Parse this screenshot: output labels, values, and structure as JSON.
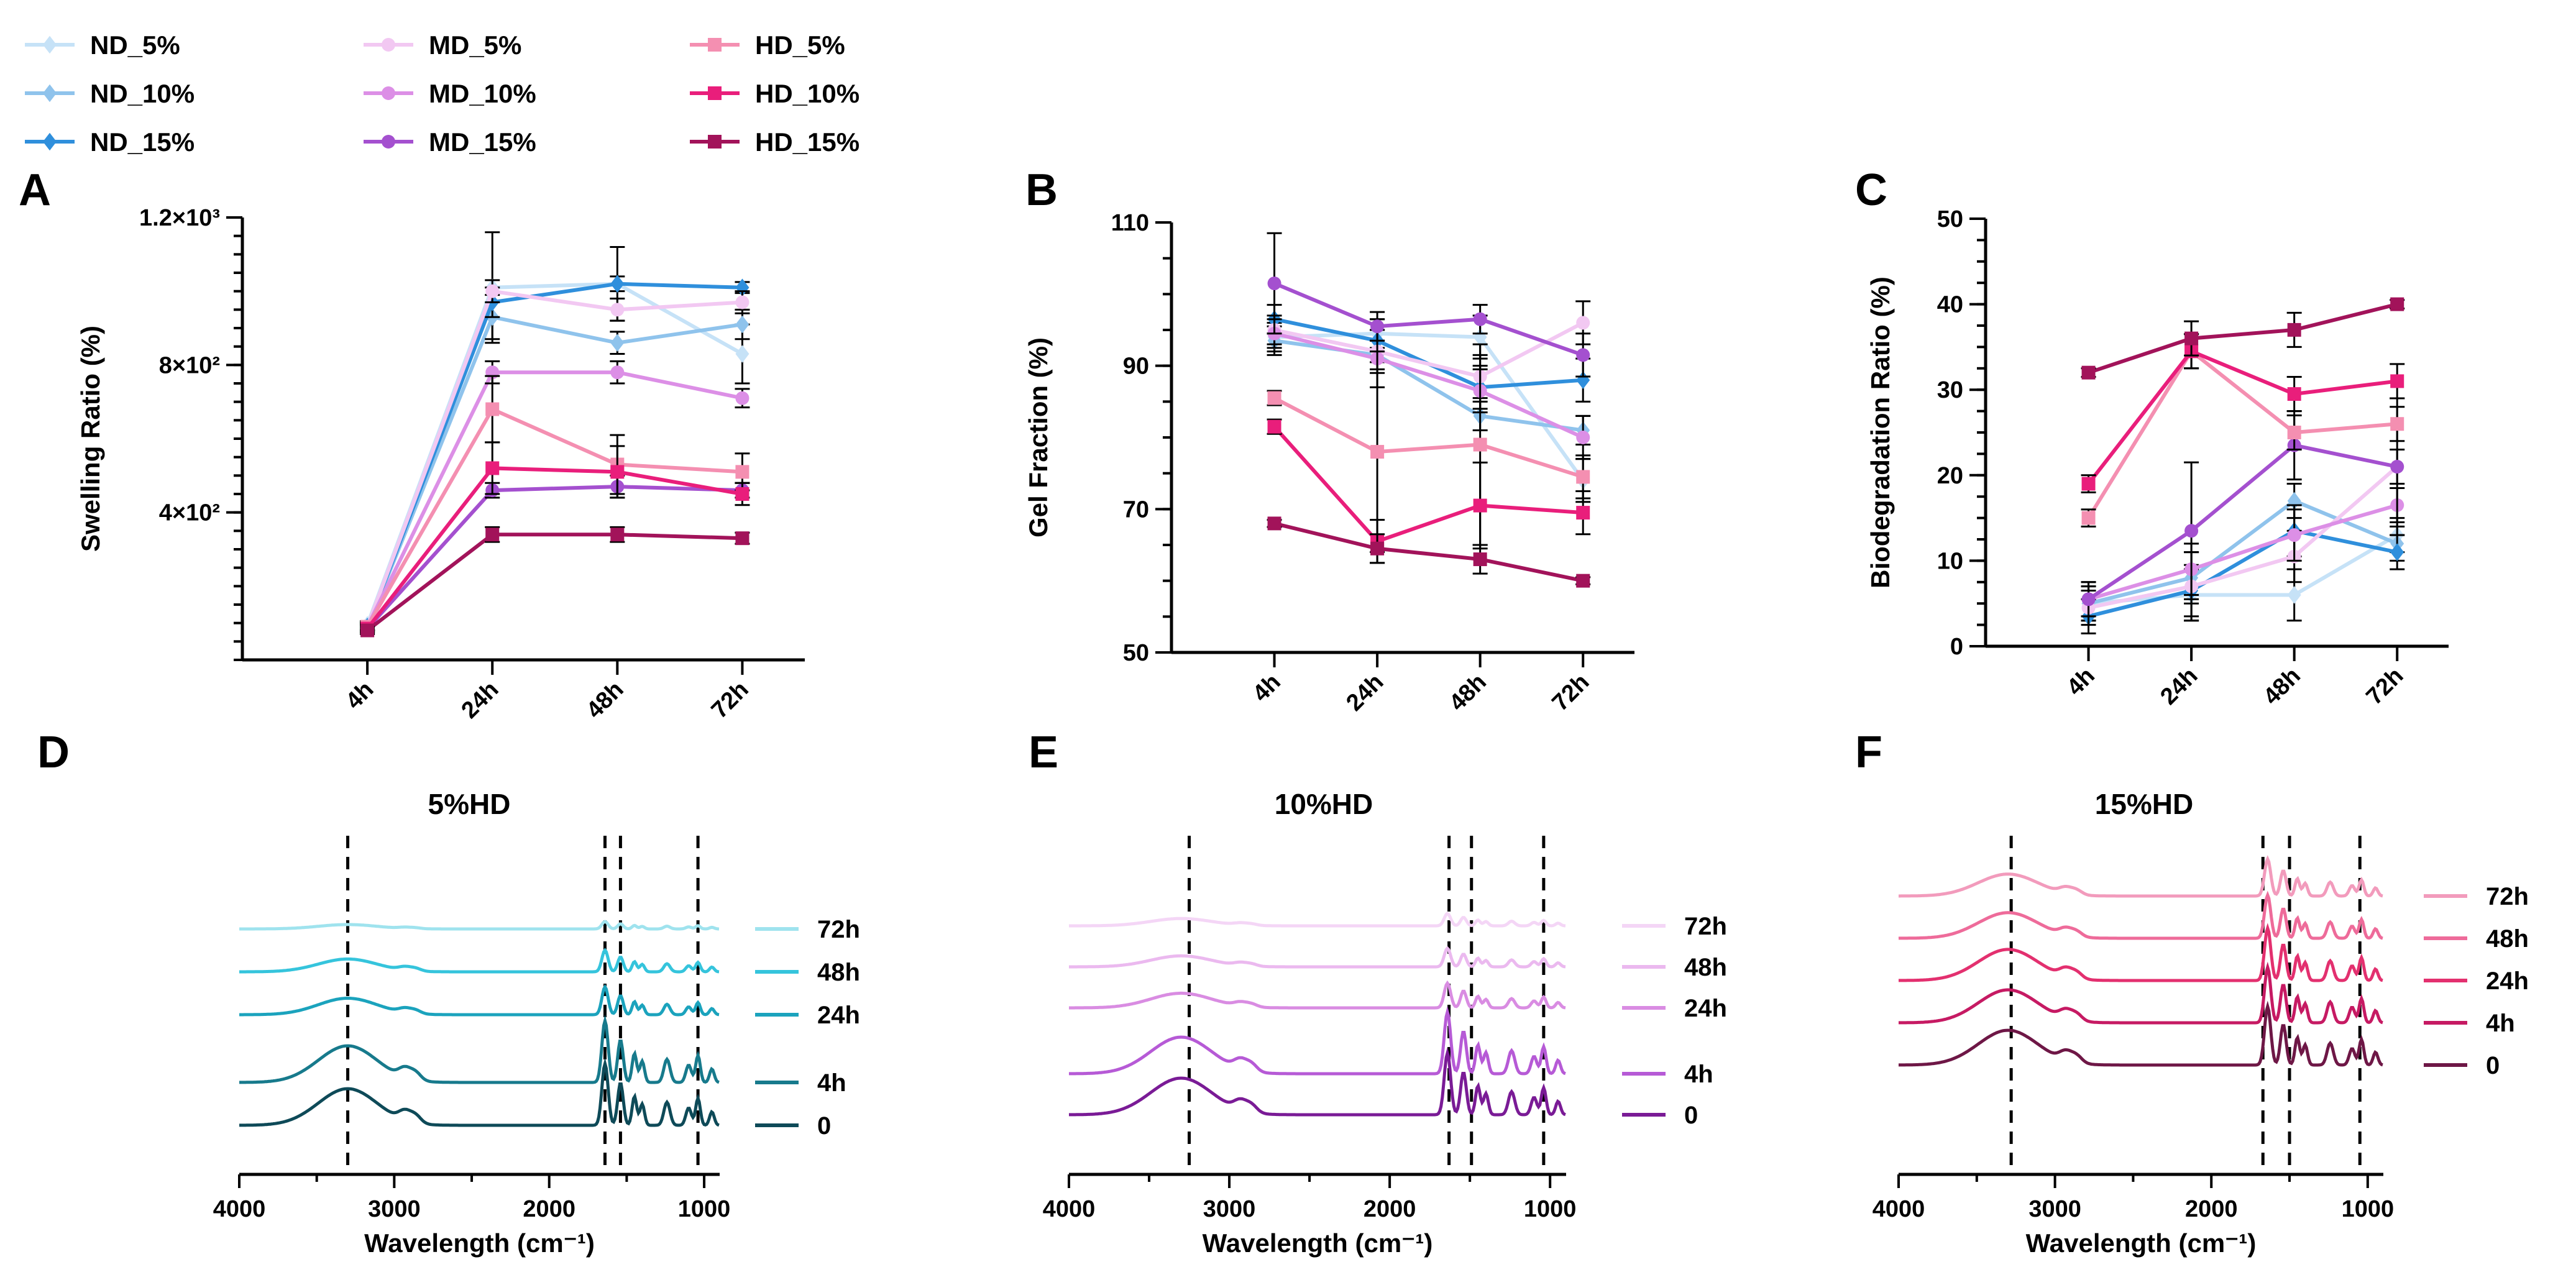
{
  "legend": {
    "items": [
      {
        "label": "ND_5%",
        "color": "#c6e2f7",
        "marker": "diamond"
      },
      {
        "label": "ND_10%",
        "color": "#8fc3ec",
        "marker": "diamond"
      },
      {
        "label": "ND_15%",
        "color": "#2f8fdc",
        "marker": "diamond"
      },
      {
        "label": "MD_5%",
        "color": "#f2c8f2",
        "marker": "circle"
      },
      {
        "label": "MD_10%",
        "color": "#dc8fe6",
        "marker": "circle"
      },
      {
        "label": "MD_15%",
        "color": "#a450cf",
        "marker": "circle"
      },
      {
        "label": "HD_5%",
        "color": "#f48fb1",
        "marker": "square"
      },
      {
        "label": "HD_10%",
        "color": "#e91e7b",
        "marker": "square"
      },
      {
        "label": "HD_15%",
        "color": "#a2135a",
        "marker": "square"
      }
    ]
  },
  "chart_data": [
    {
      "panel": "A",
      "type": "line",
      "ylabel": "Swelling Ratio (%)",
      "xlabel": "",
      "categories": [
        "4h",
        "24h",
        "48h",
        "72h"
      ],
      "ylim": [
        0,
        1200
      ],
      "yticks": [
        {
          "v": 400,
          "label": "4×10²"
        },
        {
          "v": 800,
          "label": "8×10²"
        },
        {
          "v": 1200,
          "label": "1.2×10³"
        }
      ],
      "series": [
        {
          "name": "ND_5%",
          "values": [
            95,
            1010,
            1020,
            830
          ],
          "err": [
            10,
            150,
            100,
            80
          ]
        },
        {
          "name": "ND_10%",
          "values": [
            90,
            930,
            860,
            910
          ],
          "err": [
            10,
            60,
            30,
            40
          ]
        },
        {
          "name": "ND_15%",
          "values": [
            90,
            970,
            1020,
            1010
          ],
          "err": [
            10,
            40,
            20,
            15
          ]
        },
        {
          "name": "MD_5%",
          "values": [
            90,
            1000,
            950,
            970
          ],
          "err": [
            10,
            30,
            30,
            30
          ]
        },
        {
          "name": "MD_10%",
          "values": [
            90,
            780,
            780,
            710
          ],
          "err": [
            10,
            30,
            30,
            25
          ]
        },
        {
          "name": "MD_15%",
          "values": [
            85,
            460,
            470,
            460
          ],
          "err": [
            10,
            20,
            30,
            20
          ]
        },
        {
          "name": "HD_5%",
          "values": [
            90,
            680,
            530,
            510
          ],
          "err": [
            10,
            90,
            80,
            50
          ]
        },
        {
          "name": "HD_10%",
          "values": [
            85,
            520,
            510,
            450
          ],
          "err": [
            10,
            70,
            70,
            30
          ]
        },
        {
          "name": "HD_15%",
          "values": [
            80,
            340,
            340,
            330
          ],
          "err": [
            10,
            20,
            20,
            15
          ]
        }
      ]
    },
    {
      "panel": "B",
      "type": "line",
      "ylabel": "Gel Fraction (%)",
      "xlabel": "",
      "categories": [
        "4h",
        "24h",
        "48h",
        "72h"
      ],
      "ylim": [
        50,
        110
      ],
      "yticks": [
        {
          "v": 50,
          "label": "50"
        },
        {
          "v": 70,
          "label": "70"
        },
        {
          "v": 90,
          "label": "90"
        },
        {
          "v": 110,
          "label": "110"
        }
      ],
      "series": [
        {
          "name": "ND_5%",
          "values": [
            94,
            94.5,
            94,
            74
          ],
          "err": [
            2,
            2,
            3,
            3
          ]
        },
        {
          "name": "ND_10%",
          "values": [
            93.5,
            91.5,
            83,
            81
          ],
          "err": [
            2,
            2,
            2,
            2
          ]
        },
        {
          "name": "ND_15%",
          "values": [
            96.5,
            93.5,
            87,
            88
          ],
          "err": [
            2,
            3,
            3,
            3
          ]
        },
        {
          "name": "MD_5%",
          "values": [
            95,
            92,
            88.5,
            96
          ],
          "err": [
            2,
            3,
            3,
            3
          ]
        },
        {
          "name": "MD_10%",
          "values": [
            94.5,
            91,
            86.5,
            80
          ],
          "err": [
            2,
            4,
            3,
            3
          ]
        },
        {
          "name": "MD_15%",
          "values": [
            101.5,
            95.5,
            96.5,
            91.5
          ],
          "err": [
            7,
            2,
            2,
            3
          ]
        },
        {
          "name": "HD_5%",
          "values": [
            85.5,
            78,
            79,
            74.5
          ],
          "err": [
            1,
            14,
            14,
            3
          ]
        },
        {
          "name": "HD_10%",
          "values": [
            81.5,
            65.5,
            70.5,
            69.5
          ],
          "err": [
            1,
            3,
            6,
            3
          ]
        },
        {
          "name": "HD_15%",
          "values": [
            68,
            64.5,
            63,
            60
          ],
          "err": [
            0.5,
            2,
            2,
            0.5
          ]
        }
      ]
    },
    {
      "panel": "C",
      "type": "line",
      "ylabel": "Biodegradation Ratio (%)",
      "xlabel": "",
      "categories": [
        "4h",
        "24h",
        "48h",
        "72h"
      ],
      "ylim": [
        0,
        50
      ],
      "yticks": [
        {
          "v": 0,
          "label": "0"
        },
        {
          "v": 10,
          "label": "10"
        },
        {
          "v": 20,
          "label": "20"
        },
        {
          "v": 30,
          "label": "30"
        },
        {
          "v": 40,
          "label": "40"
        },
        {
          "v": 50,
          "label": "50"
        }
      ],
      "series": [
        {
          "name": "ND_5%",
          "values": [
            5,
            6,
            6,
            13
          ],
          "err": [
            2,
            3,
            3,
            2
          ]
        },
        {
          "name": "ND_10%",
          "values": [
            5,
            8,
            17,
            12
          ],
          "err": [
            2,
            3,
            2,
            2
          ]
        },
        {
          "name": "ND_15%",
          "values": [
            3.5,
            6.5,
            13.5,
            11
          ],
          "err": [
            2,
            3,
            3,
            2
          ]
        },
        {
          "name": "MD_5%",
          "values": [
            4.5,
            7,
            10.5,
            21
          ],
          "err": [
            2,
            4,
            3,
            2
          ]
        },
        {
          "name": "MD_10%",
          "values": [
            5.5,
            9,
            13,
            16.5
          ],
          "err": [
            2,
            3,
            3,
            2
          ]
        },
        {
          "name": "MD_15%",
          "values": [
            5.5,
            13.5,
            23.5,
            21
          ],
          "err": [
            2,
            8,
            4,
            8
          ]
        },
        {
          "name": "HD_5%",
          "values": [
            15,
            34.5,
            25,
            26
          ],
          "err": [
            1,
            2,
            2,
            2
          ]
        },
        {
          "name": "HD_10%",
          "values": [
            19,
            34.5,
            29.5,
            31
          ],
          "err": [
            1,
            2,
            2,
            2
          ]
        },
        {
          "name": "HD_15%",
          "values": [
            32,
            36,
            37,
            40
          ],
          "err": [
            0.5,
            2,
            2,
            0.5
          ]
        }
      ]
    },
    {
      "panel": "D",
      "type": "line",
      "title": "5%HD",
      "xlabel": "Wavelength (cm⁻¹)",
      "xlim": [
        4000,
        900
      ],
      "xticks": [
        {
          "v": 4000,
          "label": "4000"
        },
        {
          "v": 3000,
          "label": "3000"
        },
        {
          "v": 2000,
          "label": "2000"
        },
        {
          "v": 1000,
          "label": "1000"
        }
      ],
      "reference_lines": [
        3300,
        1640,
        1540,
        1040
      ],
      "series": [
        {
          "name": "72h",
          "color": "#9fe3ee",
          "amp": 0.12
        },
        {
          "name": "48h",
          "color": "#35c4dc",
          "amp": 0.35
        },
        {
          "name": "24h",
          "color": "#1ba3bd",
          "amp": 0.45
        },
        {
          "name": "4h",
          "color": "#177a8c",
          "amp": 1.0
        },
        {
          "name": "0",
          "color": "#0e4a58",
          "amp": 1.0
        }
      ]
    },
    {
      "panel": "E",
      "type": "line",
      "title": "10%HD",
      "xlabel": "Wavelength (cm⁻¹)",
      "xlim": [
        4000,
        900
      ],
      "xticks": [
        {
          "v": 4000,
          "label": "4000"
        },
        {
          "v": 3000,
          "label": "3000"
        },
        {
          "v": 2000,
          "label": "2000"
        },
        {
          "v": 1000,
          "label": "1000"
        }
      ],
      "reference_lines": [
        3250,
        1630,
        1490,
        1040
      ],
      "series": [
        {
          "name": "72h",
          "color": "#f4d6f6",
          "amp": 0.2
        },
        {
          "name": "48h",
          "color": "#ebb9ef",
          "amp": 0.3
        },
        {
          "name": "24h",
          "color": "#d98ce2",
          "amp": 0.4
        },
        {
          "name": "4h",
          "color": "#b65ad6",
          "amp": 1.0
        },
        {
          "name": "0",
          "color": "#7a1b96",
          "amp": 1.0
        }
      ]
    },
    {
      "panel": "F",
      "type": "line",
      "title": "15%HD",
      "xlabel": "Wavelength (cm⁻¹)",
      "xlim": [
        4000,
        900
      ],
      "xticks": [
        {
          "v": 4000,
          "label": "4000"
        },
        {
          "v": 3000,
          "label": "3000"
        },
        {
          "v": 2000,
          "label": "2000"
        },
        {
          "v": 1000,
          "label": "1000"
        }
      ],
      "reference_lines": [
        3280,
        1670,
        1500,
        1050
      ],
      "series": [
        {
          "name": "72h",
          "color": "#f29bbc",
          "amp": 0.6
        },
        {
          "name": "48h",
          "color": "#ee6b9a",
          "amp": 0.7
        },
        {
          "name": "24h",
          "color": "#e3306f",
          "amp": 0.85
        },
        {
          "name": "4h",
          "color": "#c61a63",
          "amp": 0.9
        },
        {
          "name": "0",
          "color": "#6e1746",
          "amp": 0.95
        }
      ]
    }
  ]
}
